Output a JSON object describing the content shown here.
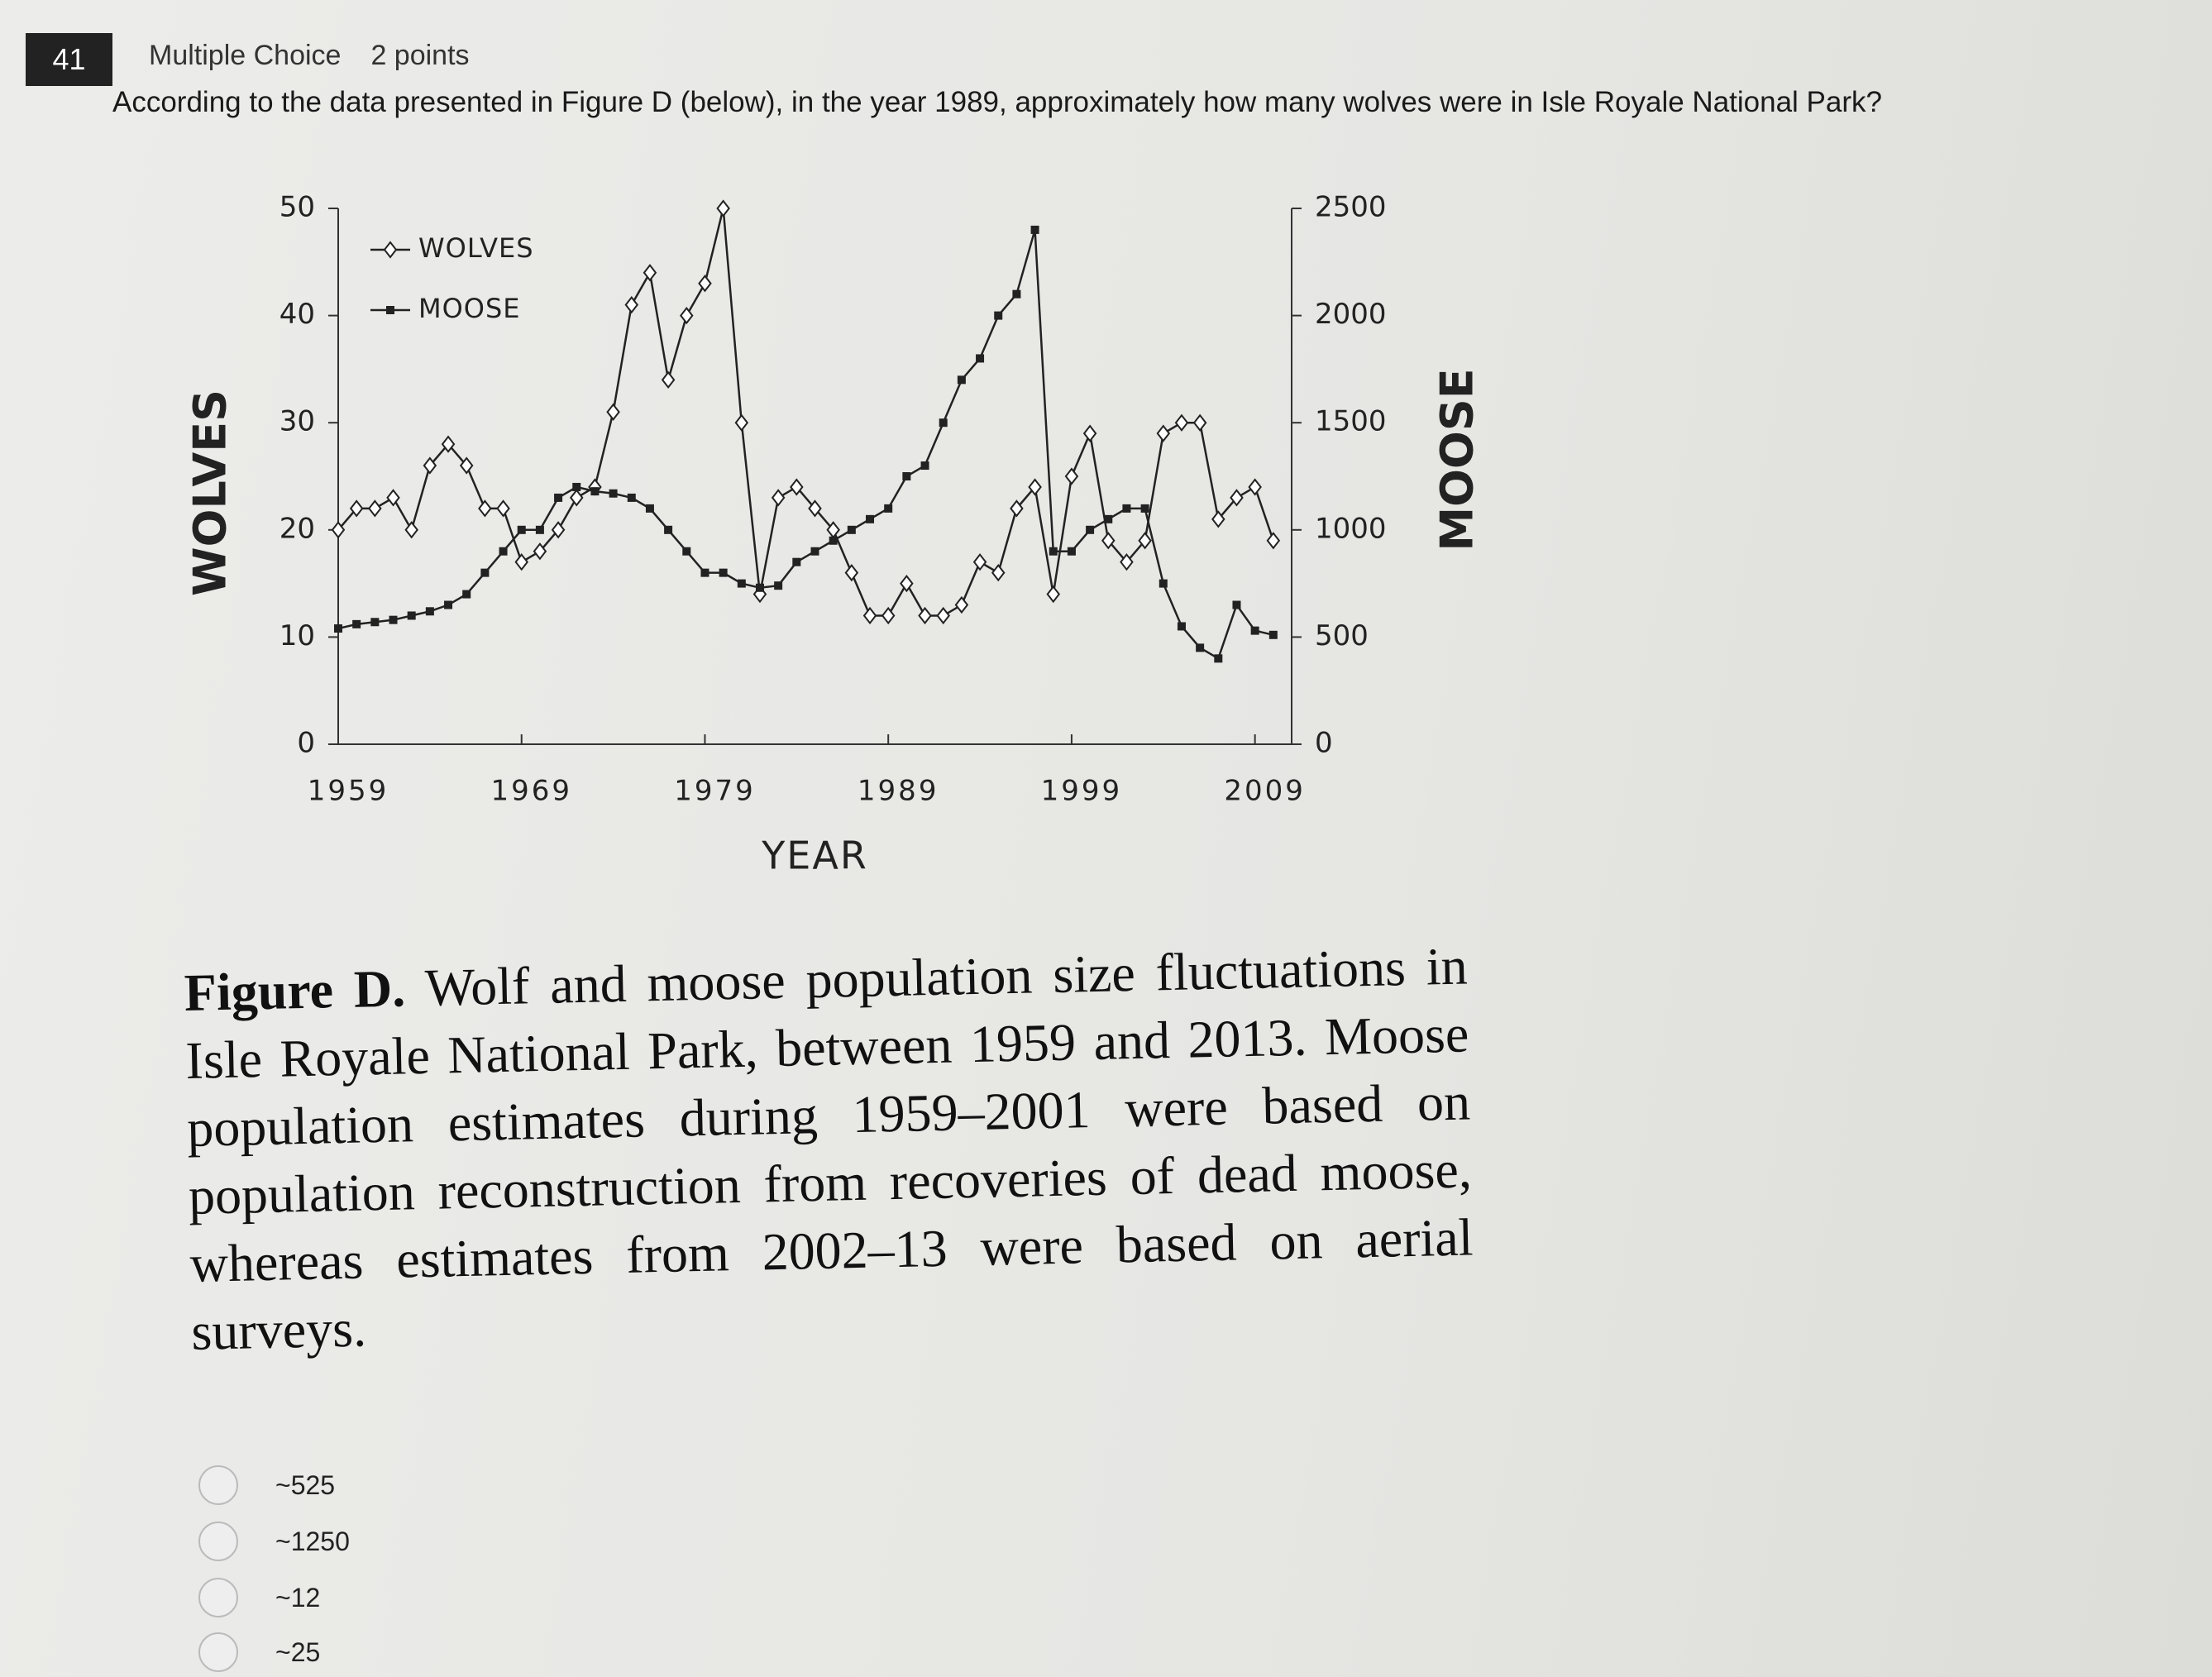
{
  "question": {
    "number": "41",
    "type": "Multiple Choice",
    "points": "2 points",
    "text": "According to the data presented in Figure D (below), in the year 1989, approximately how many wolves were in Isle Royale National Park?"
  },
  "chart_data": {
    "type": "line",
    "x_label": "YEAR",
    "y_label": "WOLVES",
    "y2_label": "MOOSE",
    "x": [
      1959,
      1960,
      1961,
      1962,
      1963,
      1964,
      1965,
      1966,
      1967,
      1968,
      1969,
      1970,
      1971,
      1972,
      1973,
      1974,
      1975,
      1976,
      1977,
      1978,
      1979,
      1980,
      1981,
      1982,
      1983,
      1984,
      1985,
      1986,
      1987,
      1988,
      1989,
      1990,
      1991,
      1992,
      1993,
      1994,
      1995,
      1996,
      1997,
      1998,
      1999,
      2000,
      2001,
      2002,
      2003,
      2004,
      2005,
      2006,
      2007,
      2008,
      2009,
      2010
    ],
    "series": [
      {
        "name": "WOLVES",
        "color": "#222222",
        "marker": "diamond",
        "values": [
          20,
          22,
          22,
          23,
          20,
          26,
          28,
          26,
          22,
          22,
          17,
          18,
          20,
          23,
          24,
          31,
          41,
          44,
          34,
          40,
          43,
          50,
          30,
          14,
          23,
          24,
          22,
          20,
          16,
          12,
          12,
          15,
          12,
          12,
          13,
          17,
          16,
          22,
          24,
          14,
          25,
          29,
          19,
          17,
          19,
          29,
          30,
          30,
          21,
          23,
          24,
          19
        ]
      },
      {
        "name": "MOOSE",
        "color": "#222222",
        "marker": "square",
        "axis": "y2",
        "values": [
          540,
          560,
          570,
          580,
          600,
          620,
          650,
          700,
          800,
          900,
          1000,
          1000,
          1150,
          1200,
          1180,
          1170,
          1150,
          1100,
          1000,
          900,
          800,
          800,
          750,
          730,
          740,
          850,
          900,
          950,
          1000,
          1050,
          1100,
          1250,
          1300,
          1500,
          1700,
          1800,
          2000,
          2100,
          2400,
          900,
          900,
          1000,
          1050,
          1100,
          1100,
          750,
          550,
          450,
          400,
          650,
          530,
          510
        ]
      }
    ],
    "xlim": [
      1959,
      2011
    ],
    "xticks": [
      1959,
      1969,
      1979,
      1989,
      1999,
      2009
    ],
    "ylim": [
      0,
      50
    ],
    "yticks": [
      0,
      10,
      20,
      30,
      40,
      50
    ],
    "y2lim": [
      0,
      2500
    ],
    "y2ticks": [
      0,
      500,
      1000,
      1500,
      2000,
      2500
    ],
    "grid": false,
    "legend": "upper left"
  },
  "caption": {
    "label": "Figure D.",
    "text": "Wolf and moose population size fluctuations in Isle Royale National Park, between 1959 and 2013. Moose population estimates during 1959–2001 were based on population reconstruction from recoveries of dead moose, whereas estimates from 2002–13 were based on aerial surveys."
  },
  "options": [
    "~525",
    "~1250",
    "~12",
    "~25"
  ]
}
